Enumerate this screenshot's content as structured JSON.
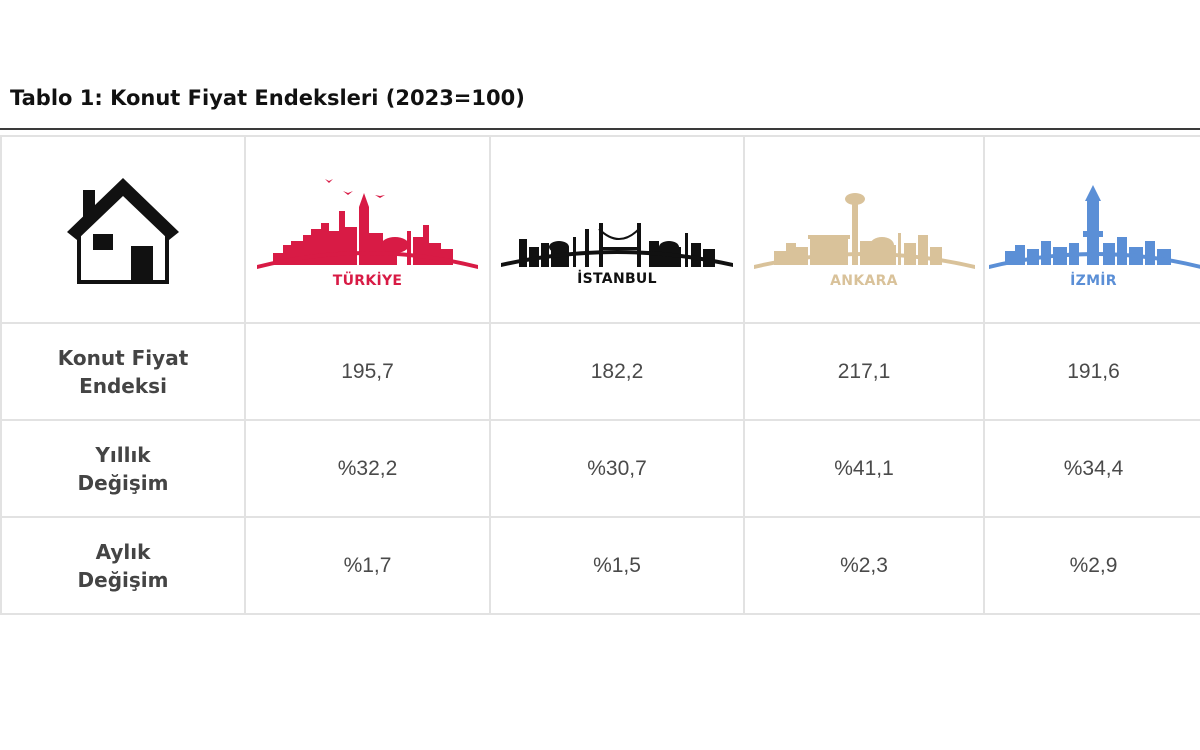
{
  "title": "Tablo 1: Konut Fiyat Endeksleri (2023=100)",
  "header": {
    "icon": "house-icon",
    "cities": [
      {
        "name": "TÜRKİYE",
        "color": "#d81b45"
      },
      {
        "name": "İSTANBUL",
        "color": "#111111"
      },
      {
        "name": "ANKARA",
        "color": "#d9c29a"
      },
      {
        "name": "İZMİR",
        "color": "#5b8fd6"
      }
    ]
  },
  "rows": [
    {
      "label_line1": "Konut Fiyat",
      "label_line2": "Endeksi",
      "values": [
        "195,7",
        "182,2",
        "217,1",
        "191,6"
      ]
    },
    {
      "label_line1": "Yıllık",
      "label_line2": "Değişim",
      "values": [
        "%32,2",
        "%30,7",
        "%41,1",
        "%34,4"
      ]
    },
    {
      "label_line1": "Aylık",
      "label_line2": "Değişim",
      "values": [
        "%1,7",
        "%1,5",
        "%2,3",
        "%2,9"
      ]
    }
  ]
}
